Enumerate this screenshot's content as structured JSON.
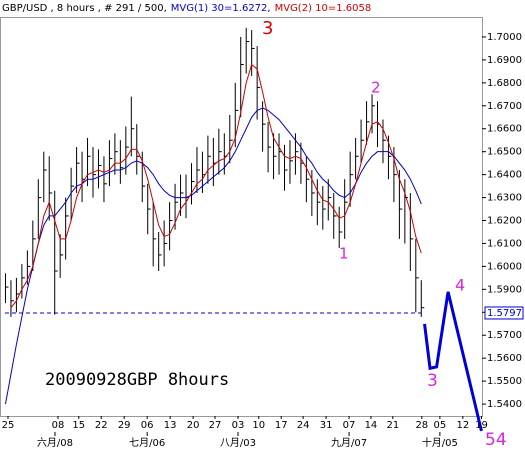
{
  "chart_data": {
    "type": "hlc",
    "title_parts": [
      {
        "text": "GBP/USD , 8 hours , # 291 / 500,",
        "color": "#000000"
      },
      {
        "text": "MVG(1) 30=1.6272,",
        "color": "#0000cc"
      },
      {
        "text": "MVG(2) 10=1.6058",
        "color": "#cc0000"
      }
    ],
    "high": [
      1.597,
      1.594,
      1.595,
      1.601,
      1.607,
      1.62,
      1.638,
      1.65,
      1.648,
      1.633,
      1.614,
      1.63,
      1.643,
      1.652,
      1.65,
      1.656,
      1.652,
      1.651,
      1.648,
      1.655,
      1.658,
      1.655,
      1.661,
      1.674,
      1.662,
      1.65,
      1.636,
      1.628,
      1.615,
      1.62,
      1.628,
      1.636,
      1.64,
      1.64,
      1.645,
      1.652,
      1.65,
      1.657,
      1.656,
      1.66,
      1.658,
      1.666,
      1.68,
      1.7,
      1.704,
      1.703,
      1.696,
      1.672,
      1.663,
      1.658,
      1.658,
      1.653,
      1.655,
      1.658,
      1.654,
      1.648,
      1.642,
      1.638,
      1.635,
      1.638,
      1.632,
      1.626,
      1.638,
      1.65,
      1.656,
      1.664,
      1.672,
      1.675,
      1.672,
      1.664,
      1.657,
      1.652,
      1.642,
      1.638,
      1.632,
      1.612,
      1.594
    ],
    "low": [
      1.584,
      1.578,
      1.58,
      1.586,
      1.592,
      1.598,
      1.612,
      1.628,
      1.62,
      1.579,
      1.595,
      1.603,
      1.62,
      1.632,
      1.628,
      1.635,
      1.63,
      1.634,
      1.628,
      1.635,
      1.64,
      1.636,
      1.64,
      1.648,
      1.64,
      1.628,
      1.614,
      1.6,
      1.598,
      1.6,
      1.607,
      1.616,
      1.622,
      1.621,
      1.627,
      1.632,
      1.632,
      1.636,
      1.635,
      1.64,
      1.64,
      1.645,
      1.652,
      1.665,
      1.684,
      1.683,
      1.664,
      1.65,
      1.641,
      1.638,
      1.64,
      1.633,
      1.636,
      1.64,
      1.636,
      1.628,
      1.622,
      1.618,
      1.616,
      1.62,
      1.612,
      1.608,
      1.612,
      1.626,
      1.638,
      1.645,
      1.653,
      1.658,
      1.652,
      1.645,
      1.638,
      1.628,
      1.612,
      1.61,
      1.598,
      1.58,
      1.578
    ],
    "close": [
      1.591,
      1.585,
      1.588,
      1.595,
      1.6,
      1.612,
      1.63,
      1.642,
      1.632,
      1.598,
      1.605,
      1.622,
      1.635,
      1.645,
      1.638,
      1.648,
      1.64,
      1.644,
      1.636,
      1.647,
      1.65,
      1.643,
      1.652,
      1.66,
      1.648,
      1.635,
      1.625,
      1.612,
      1.605,
      1.61,
      1.62,
      1.628,
      1.632,
      1.63,
      1.637,
      1.642,
      1.64,
      1.648,
      1.645,
      1.65,
      1.648,
      1.655,
      1.668,
      1.688,
      1.698,
      1.695,
      1.678,
      1.662,
      1.652,
      1.648,
      1.65,
      1.642,
      1.646,
      1.65,
      1.645,
      1.638,
      1.632,
      1.628,
      1.625,
      1.63,
      1.622,
      1.615,
      1.628,
      1.64,
      1.648,
      1.655,
      1.663,
      1.67,
      1.662,
      1.655,
      1.648,
      1.64,
      1.625,
      1.63,
      1.612,
      1.595,
      1.582
    ],
    "bar_color": "#000000",
    "series": [
      {
        "color": "#0000cc",
        "values": [
          1.54,
          1.553,
          1.566,
          1.578,
          1.59,
          1.6,
          1.61,
          1.618,
          1.622,
          1.622,
          1.625,
          1.628,
          1.632,
          1.635,
          1.636,
          1.638,
          1.638,
          1.639,
          1.64,
          1.641,
          1.642,
          1.642,
          1.643,
          1.645,
          1.646,
          1.645,
          1.643,
          1.64,
          1.636,
          1.633,
          1.631,
          1.63,
          1.63,
          1.63,
          1.631,
          1.633,
          1.635,
          1.637,
          1.639,
          1.641,
          1.643,
          1.646,
          1.65,
          1.655,
          1.66,
          1.665,
          1.668,
          1.669,
          1.668,
          1.666,
          1.664,
          1.661,
          1.658,
          1.655,
          1.652,
          1.648,
          1.645,
          1.641,
          1.638,
          1.636,
          1.633,
          1.631,
          1.63,
          1.632,
          1.636,
          1.641,
          1.645,
          1.648,
          1.65,
          1.65,
          1.65,
          1.648,
          1.645,
          1.642,
          1.638,
          1.633,
          1.6272
        ]
      },
      {
        "color": "#cc0000",
        "values": [
          null,
          1.582,
          1.585,
          1.59,
          1.594,
          1.6,
          1.61,
          1.622,
          1.628,
          1.62,
          1.612,
          1.612,
          1.62,
          1.63,
          1.636,
          1.64,
          1.641,
          1.642,
          1.641,
          1.642,
          1.645,
          1.645,
          1.647,
          1.651,
          1.651,
          1.646,
          1.638,
          1.628,
          1.618,
          1.613,
          1.614,
          1.619,
          1.625,
          1.628,
          1.632,
          1.636,
          1.638,
          1.642,
          1.644,
          1.646,
          1.647,
          1.65,
          1.656,
          1.667,
          1.68,
          1.688,
          1.686,
          1.676,
          1.665,
          1.656,
          1.652,
          1.648,
          1.647,
          1.648,
          1.647,
          1.643,
          1.638,
          1.633,
          1.629,
          1.628,
          1.625,
          1.621,
          1.622,
          1.628,
          1.636,
          1.645,
          1.654,
          1.662,
          1.663,
          1.66,
          1.654,
          1.647,
          1.638,
          1.632,
          1.624,
          1.613,
          1.6058
        ]
      }
    ],
    "projection": {
      "color": "#0000dd",
      "x": [
        76.6,
        77.6,
        78.8,
        80.9,
        87.0
      ],
      "values": [
        1.5749,
        1.5556,
        1.5562,
        1.5889,
        1.5283
      ]
    },
    "reference_line": {
      "value": 1.5797,
      "label": "1.5797",
      "color": "#0000cc"
    },
    "xlim": [
      -1,
      87.1
    ],
    "ylim": [
      1.5348,
      1.7087
    ],
    "yticks": [
      {
        "value": 1.54,
        "label": "1.5400"
      },
      {
        "value": 1.55,
        "label": "1.5500"
      },
      {
        "value": 1.56,
        "label": "1.5600"
      },
      {
        "value": 1.57,
        "label": "1.5700"
      },
      {
        "value": 1.58,
        "label": "1.5800"
      },
      {
        "value": 1.59,
        "label": "1.5900"
      },
      {
        "value": 1.6,
        "label": "1.6000"
      },
      {
        "value": 1.61,
        "label": "1.6100"
      },
      {
        "value": 1.62,
        "label": "1.6200"
      },
      {
        "value": 1.63,
        "label": "1.6300"
      },
      {
        "value": 1.64,
        "label": "1.6400"
      },
      {
        "value": 1.65,
        "label": "1.6500"
      },
      {
        "value": 1.66,
        "label": "1.6600"
      },
      {
        "value": 1.67,
        "label": "1.6700"
      },
      {
        "value": 1.68,
        "label": "1.6800"
      },
      {
        "value": 1.69,
        "label": "1.6900"
      },
      {
        "value": 1.7,
        "label": "1.7000"
      }
    ],
    "xticks": [
      {
        "value": 0.46,
        "label": "25"
      },
      {
        "value": 9.6,
        "label": "08"
      },
      {
        "value": 13.4,
        "label": "15"
      },
      {
        "value": 17.5,
        "label": "22"
      },
      {
        "value": 21.7,
        "label": "29"
      },
      {
        "value": 25.9,
        "label": "06"
      },
      {
        "value": 30.1,
        "label": "13"
      },
      {
        "value": 34.3,
        "label": "20"
      },
      {
        "value": 38.3,
        "label": "27"
      },
      {
        "value": 42.5,
        "label": "03"
      },
      {
        "value": 46.3,
        "label": "10"
      },
      {
        "value": 50.4,
        "label": "17"
      },
      {
        "value": 54.4,
        "label": "24"
      },
      {
        "value": 58.6,
        "label": "31"
      },
      {
        "value": 62.8,
        "label": "07"
      },
      {
        "value": 66.8,
        "label": "14"
      },
      {
        "value": 70.8,
        "label": "21"
      },
      {
        "value": 76.1,
        "label": "28"
      },
      {
        "value": 79.4,
        "label": "05"
      },
      {
        "value": 83.6,
        "label": "12"
      },
      {
        "value": 87.0,
        "label": "19"
      }
    ],
    "month_ticks": [
      {
        "value": 9.05,
        "label": "六月/08"
      },
      {
        "value": 25.9,
        "label": "七月/06"
      },
      {
        "value": 42.5,
        "label": "八月/03"
      },
      {
        "value": 62.8,
        "label": "九月/07"
      },
      {
        "value": 79.4,
        "label": "十月/05"
      }
    ],
    "annotations": [
      {
        "text": "3",
        "color": "#dd0000"
      },
      {
        "text": "2",
        "color": "#dd22dd"
      },
      {
        "text": "1",
        "color": "#dd22dd"
      },
      {
        "text": "3",
        "color": "#dd22dd"
      },
      {
        "text": "4",
        "color": "#dd22dd"
      },
      {
        "text": "54",
        "color": "#dd22dd"
      },
      {
        "text": "20090928GBP 8hours",
        "color": "#000000"
      }
    ]
  }
}
